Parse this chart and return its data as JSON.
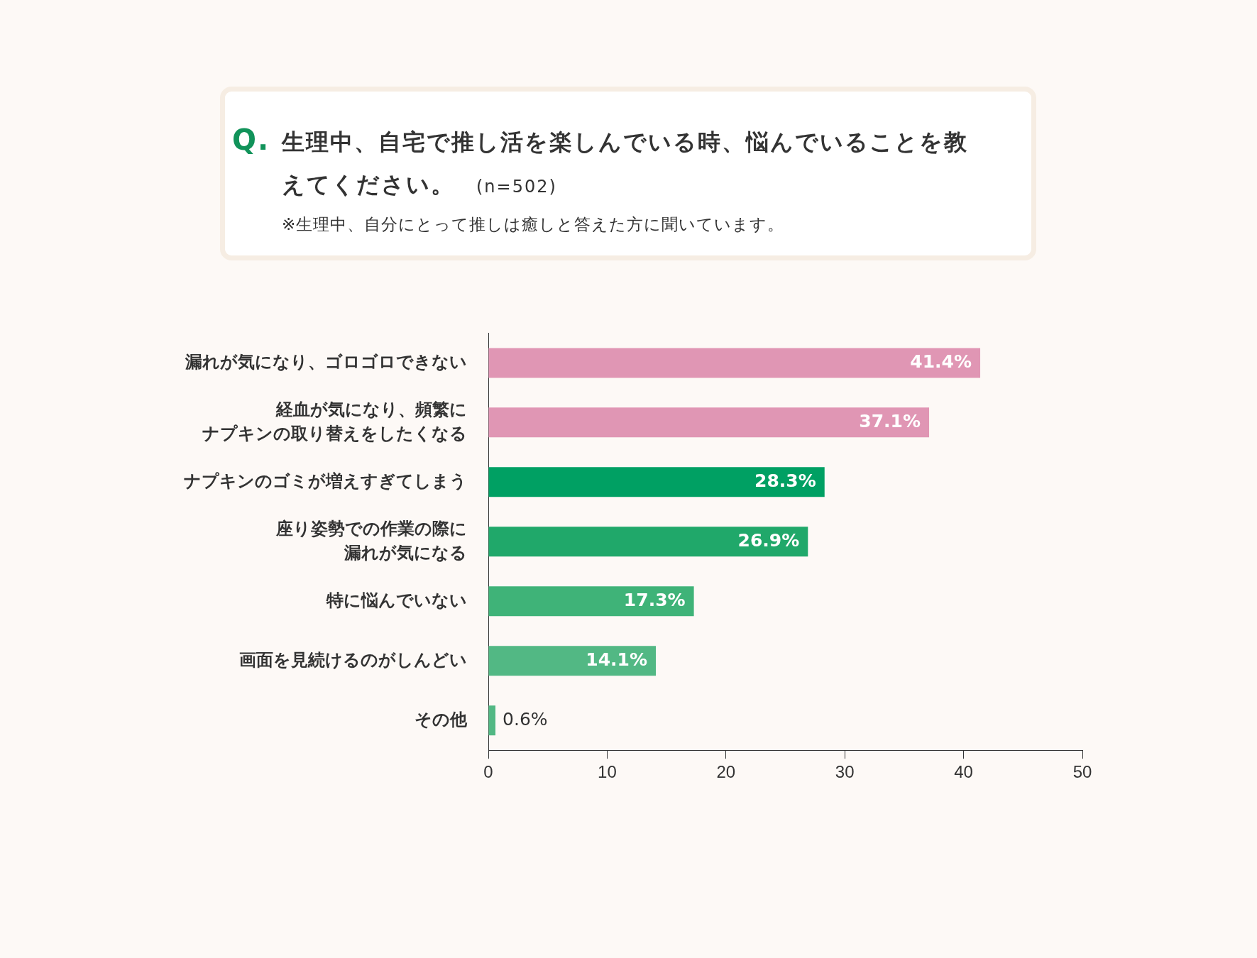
{
  "chart_data": {
    "type": "bar",
    "orientation": "horizontal",
    "title": "Q. 生理中、自宅で推し活を楽しんでいる時、悩んでいることを教えてください。 (n=502)",
    "subtitle": "※生理中、自分にとって推しは癒しと答えた方に聞いています。",
    "categories": [
      "漏れが気になり、ゴロゴロできない",
      "経血が気になり、頻繁にナプキンの取り替えをしたくなる",
      "ナプキンのゴミが増えすぎてしまう",
      "座り姿勢での作業の際に漏れが気になる",
      "特に悩んでいない",
      "画面を見続けるのがしんどい",
      "その他"
    ],
    "values": [
      41.4,
      37.1,
      28.3,
      26.9,
      17.3,
      14.1,
      0.6
    ],
    "colors": [
      "#e096b4",
      "#e096b4",
      "#00a063",
      "#20a86a",
      "#3fb378",
      "#52b884",
      "#52b884"
    ],
    "value_labels": [
      "41.4%",
      "37.1%",
      "28.3%",
      "26.9%",
      "17.3%",
      "14.1%",
      "0.6%"
    ],
    "xlim": [
      0,
      50
    ],
    "xticks": [
      0,
      10,
      20,
      30,
      40,
      50
    ]
  }
}
